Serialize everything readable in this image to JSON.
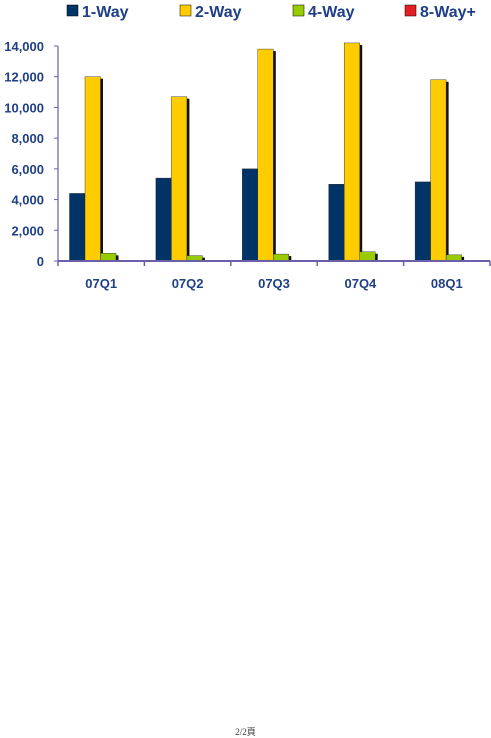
{
  "chart_data": {
    "type": "bar",
    "categories": [
      "07Q1",
      "07Q2",
      "07Q3",
      "07Q4",
      "08Q1"
    ],
    "series": [
      {
        "name": "1-Way",
        "color": "#003366",
        "values": [
          4400,
          5400,
          6000,
          5000,
          5150
        ]
      },
      {
        "name": "2-Way",
        "color": "#FFCC00",
        "values": [
          12000,
          10700,
          13800,
          14200,
          11800
        ]
      },
      {
        "name": "4-Way",
        "color": "#99CC00",
        "values": [
          500,
          350,
          450,
          600,
          400
        ]
      },
      {
        "name": "8-Way+",
        "color": "#E31E24",
        "values": [
          0,
          0,
          0,
          0,
          0
        ]
      }
    ],
    "ylim": [
      0,
      14000
    ],
    "yticks": [
      0,
      2000,
      4000,
      6000,
      8000,
      10000,
      12000,
      14000
    ],
    "ytick_labels": [
      "0",
      "2,000",
      "4,000",
      "6,000",
      "8,000",
      "10,000",
      "12,000",
      "14,000"
    ],
    "grid": false,
    "legend": "top",
    "axis_color": "#6B5FA8",
    "text_color": "#1F3F86"
  },
  "footer": {
    "page_label": "2/2頁"
  }
}
